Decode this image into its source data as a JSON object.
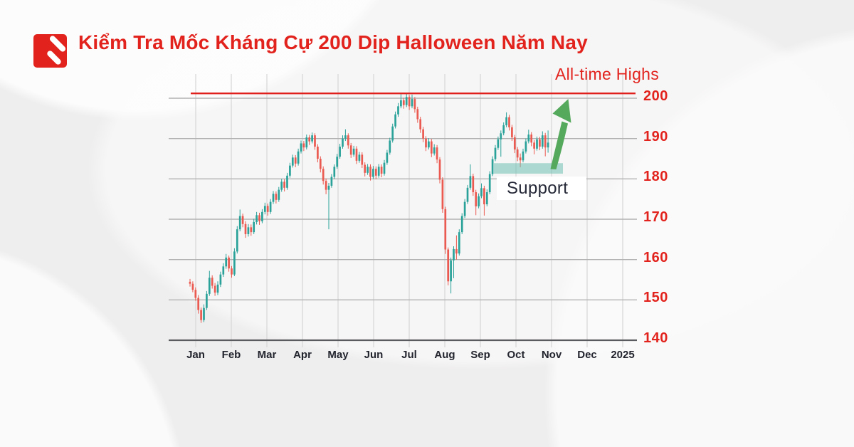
{
  "header": {
    "title": "Kiểm Tra Mốc Kháng Cự 200 Dịp Halloween Năm Nay"
  },
  "annotations": {
    "all_time_highs_label": "All-time Highs",
    "support_label": "Support"
  },
  "colors": {
    "brand_red": "#e2231d",
    "resistance_line": "#e0201c",
    "bull_candle": "#2aa29a",
    "bear_candle": "#ea5a50",
    "support_zone": "#6dc1b3",
    "arrow_green": "#54a95c",
    "axis_text_dark": "#22242e",
    "gridline": "#b2b2b2",
    "background": "#efeeee"
  },
  "chart_data": {
    "type": "candlestick",
    "x_axis": {
      "labels": [
        "Jan",
        "Feb",
        "Mar",
        "Apr",
        "May",
        "Jun",
        "Jul",
        "Aug",
        "Sep",
        "Oct",
        "Nov",
        "Dec",
        "2025"
      ]
    },
    "y_axis": {
      "ticks": [
        200,
        190,
        180,
        170,
        160,
        150,
        140
      ]
    },
    "ylim": [
      137,
      203
    ],
    "grid": true,
    "resistance": {
      "level": 201.2,
      "label": "All-time Highs"
    },
    "support_zone": {
      "price_from": 181.3,
      "price_to": 183.9,
      "note": "shaded band under Oct-Nov consolidation"
    },
    "candles_ohlc": [
      [
        154.5,
        155.2,
        153.3,
        154.0
      ],
      [
        154.0,
        154.6,
        151.9,
        152.5
      ],
      [
        152.5,
        153.1,
        149.8,
        150.5
      ],
      [
        150.5,
        151.2,
        146.6,
        147.5
      ],
      [
        147.5,
        148.1,
        144.3,
        145.0
      ],
      [
        145.0,
        148.9,
        144.5,
        148.0
      ],
      [
        148.0,
        152.2,
        147.5,
        151.5
      ],
      [
        151.5,
        157.2,
        151.0,
        155.5
      ],
      [
        155.5,
        156.1,
        152.8,
        153.5
      ],
      [
        153.5,
        154.2,
        151.0,
        151.8
      ],
      [
        151.8,
        154.6,
        151.2,
        153.8
      ],
      [
        153.8,
        157.0,
        153.2,
        156.3
      ],
      [
        156.3,
        159.1,
        155.7,
        158.3
      ],
      [
        158.3,
        161.4,
        157.7,
        160.5
      ],
      [
        160.5,
        161.0,
        157.0,
        157.8
      ],
      [
        157.8,
        158.4,
        155.5,
        156.3
      ],
      [
        156.3,
        162.8,
        155.9,
        162.0
      ],
      [
        162.0,
        168.3,
        161.5,
        167.5
      ],
      [
        167.5,
        172.4,
        167.0,
        170.8
      ],
      [
        170.8,
        171.4,
        168.0,
        168.8
      ],
      [
        168.8,
        169.5,
        165.4,
        166.3
      ],
      [
        166.3,
        168.8,
        165.7,
        168.0
      ],
      [
        168.0,
        168.7,
        165.9,
        166.8
      ],
      [
        166.8,
        170.1,
        166.3,
        169.3
      ],
      [
        169.3,
        171.8,
        168.7,
        171.0
      ],
      [
        171.0,
        171.6,
        168.6,
        169.5
      ],
      [
        169.5,
        172.5,
        169.0,
        171.8
      ],
      [
        171.8,
        174.1,
        171.2,
        173.3
      ],
      [
        173.3,
        173.9,
        170.9,
        171.8
      ],
      [
        171.8,
        175.0,
        171.3,
        174.3
      ],
      [
        174.3,
        177.0,
        173.8,
        176.3
      ],
      [
        176.3,
        176.9,
        173.9,
        174.8
      ],
      [
        174.8,
        178.0,
        174.3,
        177.3
      ],
      [
        177.3,
        180.0,
        176.8,
        179.3
      ],
      [
        179.3,
        179.9,
        176.9,
        177.8
      ],
      [
        177.8,
        181.5,
        177.3,
        180.8
      ],
      [
        180.8,
        184.0,
        180.3,
        183.3
      ],
      [
        183.3,
        186.0,
        182.8,
        185.3
      ],
      [
        185.3,
        185.9,
        182.9,
        183.8
      ],
      [
        183.8,
        187.5,
        183.3,
        186.8
      ],
      [
        186.8,
        189.5,
        186.3,
        188.8
      ],
      [
        188.8,
        189.4,
        186.9,
        187.8
      ],
      [
        187.8,
        191.0,
        187.3,
        190.3
      ],
      [
        190.3,
        190.9,
        188.4,
        189.3
      ],
      [
        189.3,
        191.5,
        188.8,
        190.8
      ],
      [
        190.8,
        191.3,
        187.2,
        188.0
      ],
      [
        188.0,
        188.6,
        184.1,
        185.0
      ],
      [
        185.0,
        185.6,
        181.6,
        182.5
      ],
      [
        182.5,
        183.1,
        178.6,
        179.5
      ],
      [
        179.5,
        180.1,
        176.2,
        177.3
      ],
      [
        177.3,
        179.0,
        167.5,
        178.3
      ],
      [
        178.3,
        181.2,
        177.8,
        180.5
      ],
      [
        180.5,
        183.6,
        180.0,
        183.0
      ],
      [
        183.0,
        186.2,
        182.5,
        185.5
      ],
      [
        185.5,
        188.7,
        185.0,
        188.0
      ],
      [
        188.0,
        190.8,
        187.5,
        190.0
      ],
      [
        190.0,
        192.3,
        189.4,
        190.8
      ],
      [
        190.8,
        191.3,
        187.5,
        188.3
      ],
      [
        188.3,
        188.9,
        185.2,
        186.0
      ],
      [
        186.0,
        188.2,
        185.5,
        187.5
      ],
      [
        187.5,
        188.1,
        183.7,
        184.5
      ],
      [
        184.5,
        186.7,
        184.0,
        186.0
      ],
      [
        186.0,
        186.6,
        182.7,
        183.5
      ],
      [
        183.5,
        184.1,
        180.6,
        181.5
      ],
      [
        181.5,
        183.7,
        181.0,
        183.0
      ],
      [
        183.0,
        183.6,
        179.6,
        180.5
      ],
      [
        180.5,
        183.2,
        180.0,
        182.5
      ],
      [
        182.5,
        183.1,
        179.9,
        180.8
      ],
      [
        180.8,
        183.7,
        180.3,
        183.0
      ],
      [
        183.0,
        183.6,
        180.4,
        181.3
      ],
      [
        181.3,
        184.7,
        180.8,
        184.0
      ],
      [
        184.0,
        187.2,
        183.5,
        186.5
      ],
      [
        186.5,
        190.2,
        186.0,
        189.5
      ],
      [
        189.5,
        193.7,
        189.0,
        193.0
      ],
      [
        193.0,
        196.7,
        192.5,
        196.0
      ],
      [
        196.0,
        198.8,
        195.4,
        198.0
      ],
      [
        198.0,
        201.0,
        197.5,
        199.5
      ],
      [
        199.5,
        200.1,
        197.4,
        198.3
      ],
      [
        198.3,
        201.3,
        197.8,
        200.3
      ],
      [
        200.3,
        200.8,
        197.1,
        198.0
      ],
      [
        198.0,
        200.9,
        197.5,
        199.8
      ],
      [
        199.8,
        200.3,
        196.4,
        197.3
      ],
      [
        197.3,
        197.9,
        193.9,
        194.8
      ],
      [
        194.8,
        195.4,
        191.4,
        192.3
      ],
      [
        192.3,
        192.9,
        189.1,
        190.0
      ],
      [
        190.0,
        190.6,
        186.9,
        187.8
      ],
      [
        187.8,
        190.1,
        187.3,
        189.3
      ],
      [
        189.3,
        189.9,
        185.4,
        186.3
      ],
      [
        186.3,
        188.6,
        185.8,
        187.8
      ],
      [
        187.8,
        188.4,
        183.9,
        184.8
      ],
      [
        184.8,
        185.4,
        178.9,
        179.8
      ],
      [
        179.8,
        180.4,
        171.6,
        172.5
      ],
      [
        172.5,
        173.1,
        161.4,
        162.5
      ],
      [
        162.5,
        163.0,
        153.6,
        154.6
      ],
      [
        154.6,
        160.5,
        151.6,
        159.8
      ],
      [
        159.8,
        163.3,
        155.4,
        162.6
      ],
      [
        162.6,
        166.0,
        160.0,
        161.5
      ],
      [
        161.5,
        167.5,
        161.0,
        166.8
      ],
      [
        166.8,
        171.5,
        166.3,
        170.8
      ],
      [
        170.8,
        175.0,
        170.3,
        174.3
      ],
      [
        174.3,
        178.5,
        173.8,
        177.8
      ],
      [
        177.8,
        183.6,
        177.3,
        180.7
      ],
      [
        180.7,
        181.3,
        175.8,
        176.7
      ],
      [
        176.7,
        177.3,
        171.0,
        173.2
      ],
      [
        173.2,
        176.4,
        172.7,
        175.7
      ],
      [
        175.7,
        178.9,
        175.2,
        177.7
      ],
      [
        177.7,
        178.3,
        170.9,
        173.7
      ],
      [
        173.7,
        177.4,
        173.2,
        176.7
      ],
      [
        176.7,
        181.9,
        176.2,
        181.2
      ],
      [
        181.2,
        185.6,
        180.7,
        184.9
      ],
      [
        184.9,
        188.4,
        184.4,
        187.7
      ],
      [
        187.7,
        190.5,
        187.2,
        189.8
      ],
      [
        189.8,
        192.0,
        185.5,
        191.3
      ],
      [
        191.3,
        194.0,
        190.8,
        193.3
      ],
      [
        193.3,
        196.5,
        192.8,
        195.3
      ],
      [
        195.3,
        195.9,
        192.0,
        192.8
      ],
      [
        192.8,
        193.4,
        189.4,
        190.3
      ],
      [
        190.3,
        190.9,
        186.4,
        187.3
      ],
      [
        187.3,
        187.9,
        184.4,
        185.3
      ],
      [
        185.3,
        186.3,
        182.9,
        184.6
      ],
      [
        184.6,
        187.5,
        184.1,
        186.8
      ],
      [
        186.8,
        190.0,
        186.3,
        189.3
      ],
      [
        189.3,
        192.2,
        188.8,
        191.0
      ],
      [
        191.0,
        191.6,
        188.1,
        189.0
      ],
      [
        189.0,
        189.6,
        186.1,
        187.5
      ],
      [
        187.5,
        190.5,
        187.0,
        189.8
      ],
      [
        189.8,
        190.4,
        187.1,
        188.0
      ],
      [
        188.0,
        191.8,
        187.5,
        190.8
      ],
      [
        190.8,
        191.4,
        185.6,
        187.8
      ],
      [
        187.8,
        192.0,
        186.5,
        189.0
      ]
    ]
  }
}
